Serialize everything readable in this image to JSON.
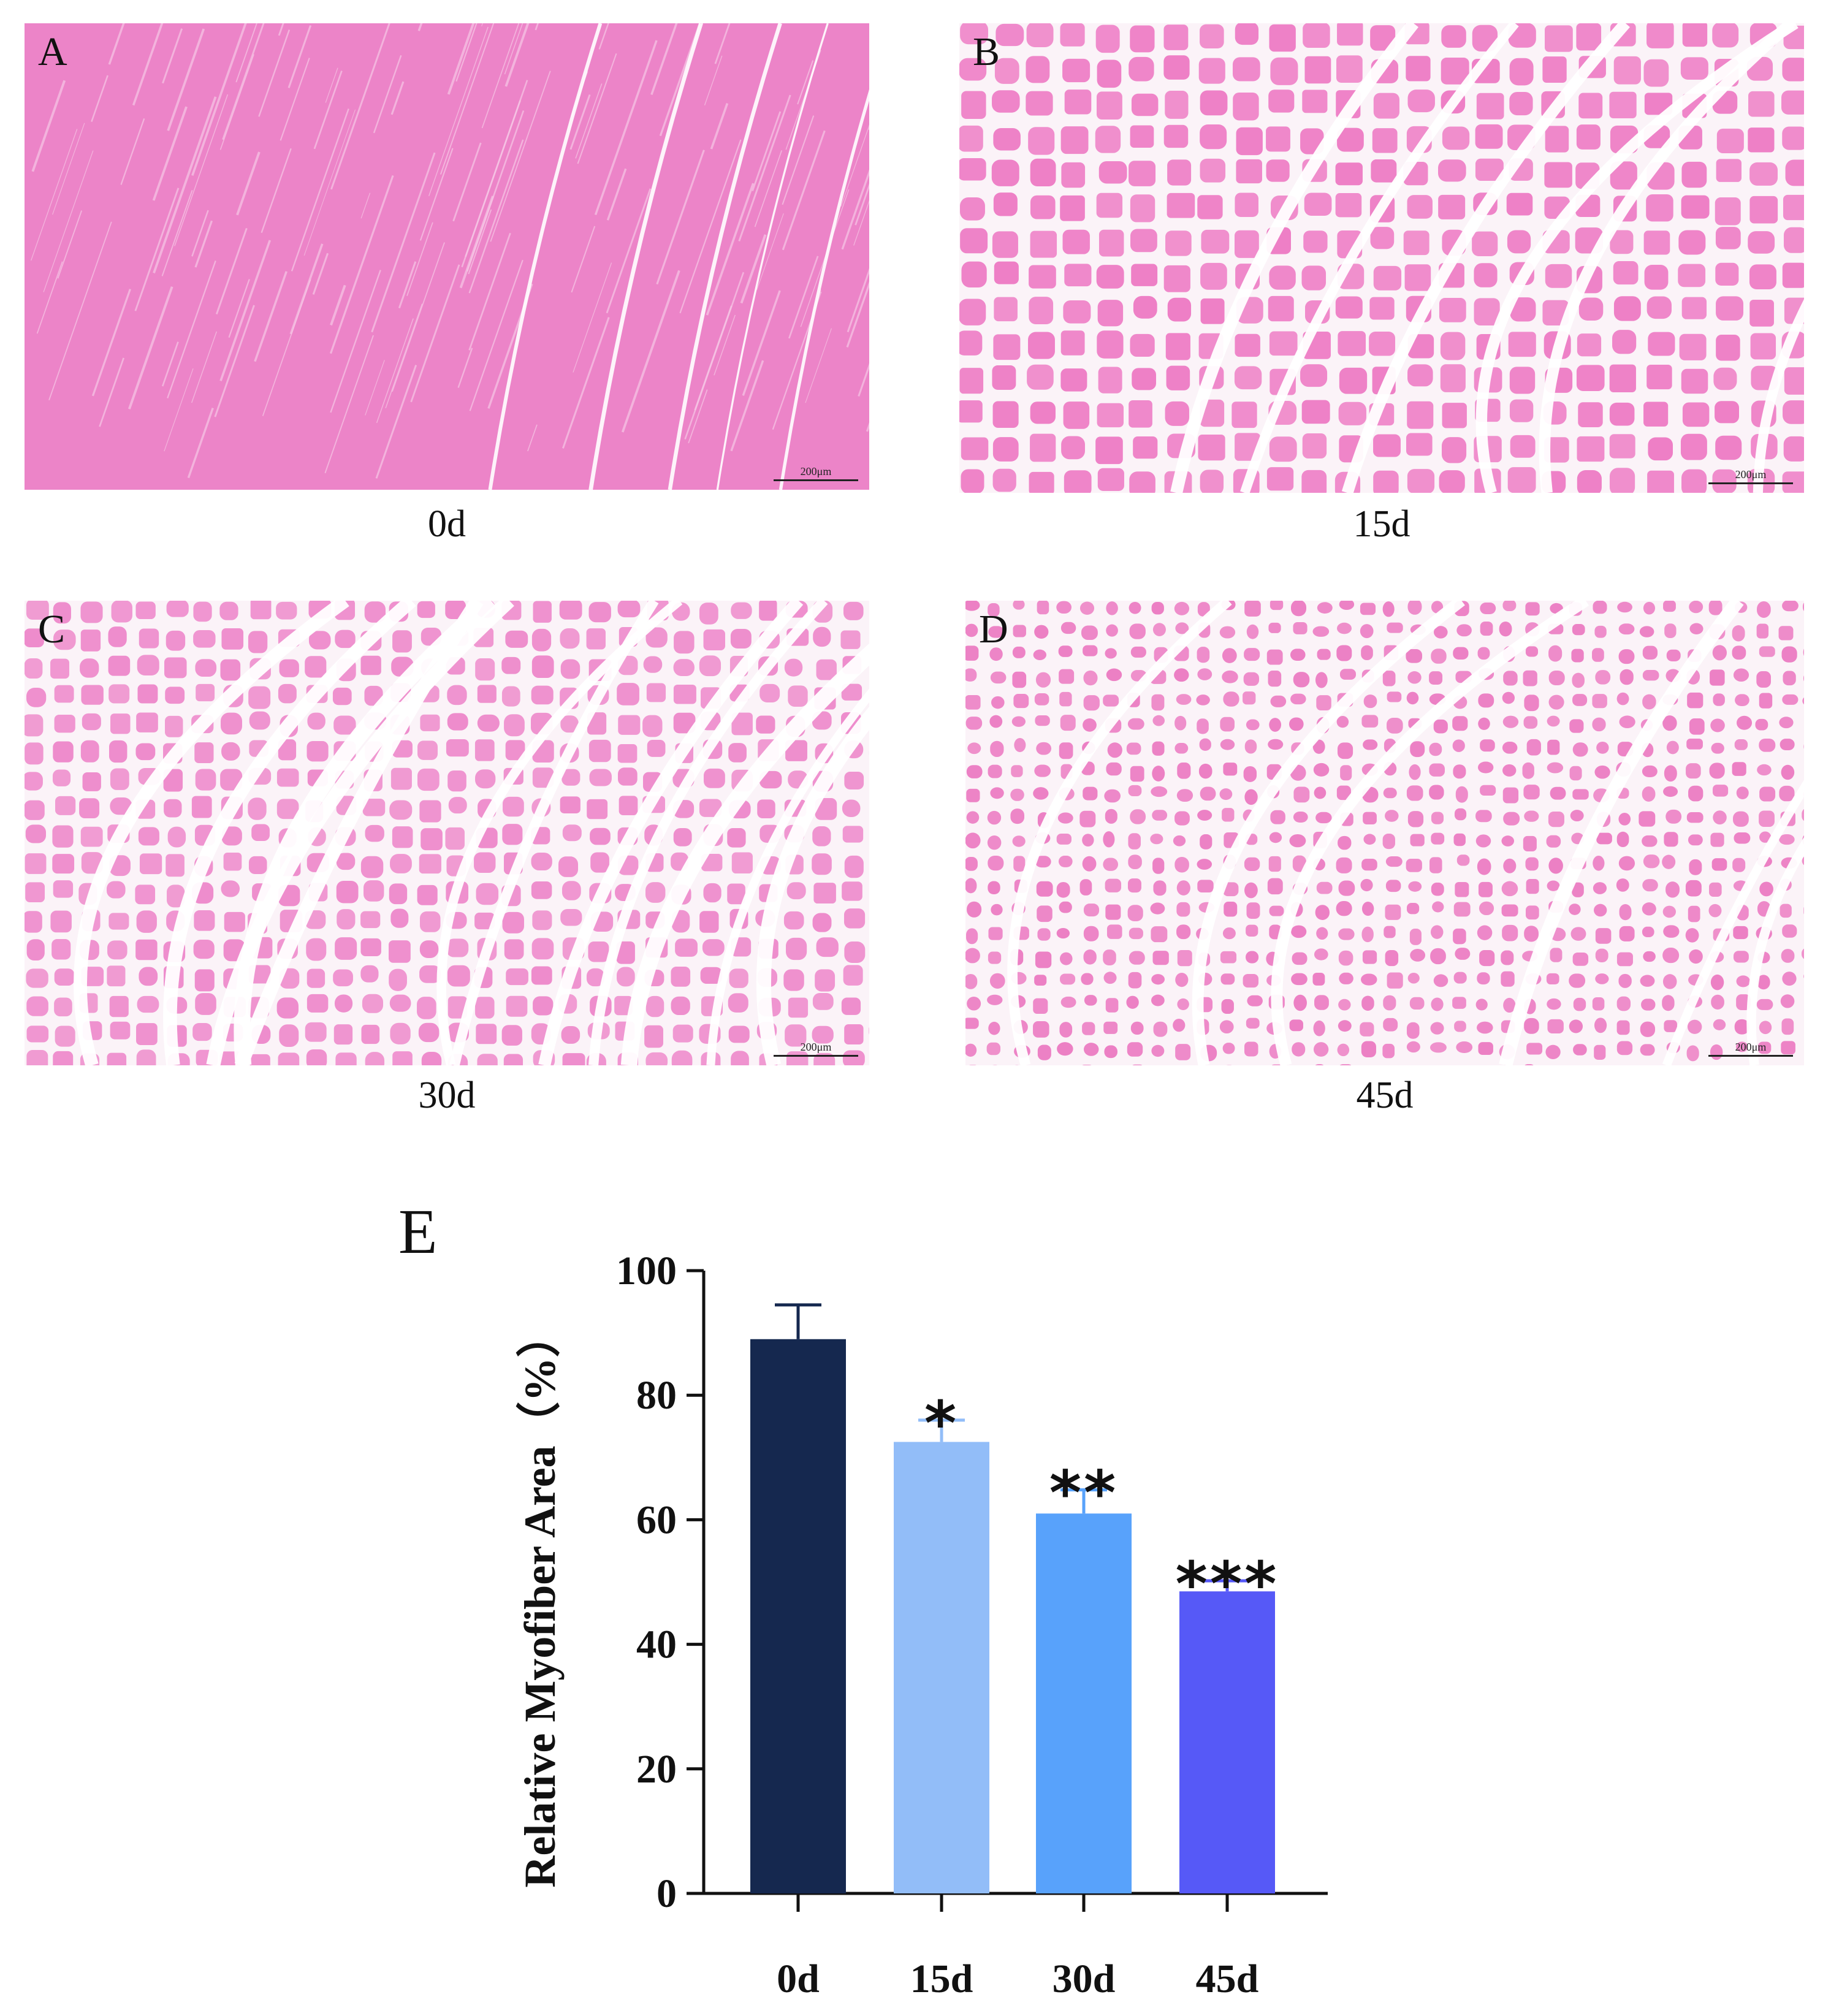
{
  "panels": [
    {
      "letter": "A",
      "caption": "0d",
      "scale_label": "200μm",
      "tissue_color": "#ec84c8"
    },
    {
      "letter": "B",
      "caption": "15d",
      "scale_label": "200μm",
      "tissue_color": "#ee7fc6"
    },
    {
      "letter": "C",
      "caption": "30d",
      "scale_label": "200μm",
      "tissue_color": "#ee8ccc"
    },
    {
      "letter": "D",
      "caption": "45d",
      "scale_label": "200μm",
      "tissue_color": "#ec7fc4"
    }
  ],
  "chart_panel_letter": "E",
  "chart_data": {
    "type": "bar",
    "categories": [
      "0d",
      "15d",
      "30d",
      "45d"
    ],
    "values": [
      89,
      72.5,
      61,
      48.5
    ],
    "errors": [
      5.5,
      3.5,
      3.8,
      1.7
    ],
    "significance": [
      "",
      "*",
      "**",
      "***"
    ],
    "bar_colors": [
      "#15284f",
      "#92bdf8",
      "#58a2fb",
      "#5659f7"
    ],
    "ylabel": "Relative Myofiber Area（%）",
    "ylim": [
      0,
      100
    ],
    "yticks": [
      "0",
      "20",
      "40",
      "60",
      "80",
      "100"
    ],
    "grid": false
  }
}
